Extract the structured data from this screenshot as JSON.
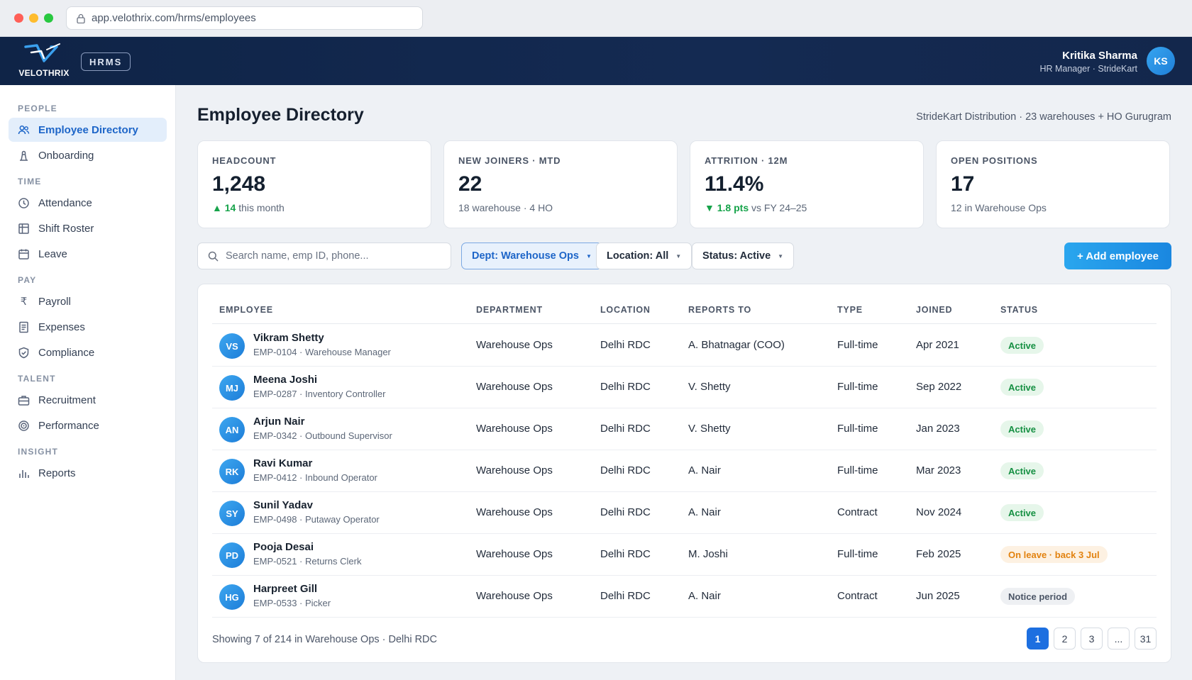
{
  "browser": {
    "url": "app.velothrix.com/hrms/employees"
  },
  "header": {
    "logo_text": "VELOTHRIX",
    "product_badge": "HRMS",
    "user_name": "Kritika Sharma",
    "user_role": "HR Manager · StrideKart",
    "user_initials": "KS"
  },
  "sidebar": {
    "sections": {
      "people": "PEOPLE",
      "time": "TIME",
      "pay": "PAY",
      "talent": "TALENT",
      "insight": "INSIGHT"
    },
    "items": {
      "employee_directory": "Employee Directory",
      "onboarding": "Onboarding",
      "attendance": "Attendance",
      "shift_roster": "Shift Roster",
      "leave": "Leave",
      "payroll": "Payroll",
      "expenses": "Expenses",
      "compliance": "Compliance",
      "recruitment": "Recruitment",
      "performance": "Performance",
      "reports": "Reports"
    },
    "active_item": "employee_directory"
  },
  "page": {
    "title": "Employee Directory",
    "org_info": "StrideKart Distribution · 23 warehouses + HO Gurugram"
  },
  "kpis": [
    {
      "label": "HEADCOUNT",
      "value": "1,248",
      "delta": "14",
      "delta_dir": "up",
      "sub": "this month"
    },
    {
      "label": "NEW JOINERS · MTD",
      "value": "22",
      "sub": "18 warehouse · 4 HO"
    },
    {
      "label": "ATTRITION · 12M",
      "value": "11.4%",
      "delta": "1.8 pts",
      "delta_dir": "down",
      "sub": "vs FY 24–25"
    },
    {
      "label": "OPEN POSITIONS",
      "value": "17",
      "sub": "12 in Warehouse Ops"
    }
  ],
  "toolbar": {
    "search_placeholder": "Search name, emp ID, phone...",
    "filter_dept": "Dept: Warehouse Ops",
    "filter_location": "Location: All",
    "filter_status": "Status: Active",
    "add_button": "+ Add employee"
  },
  "table": {
    "columns": [
      "EMPLOYEE",
      "DEPARTMENT",
      "LOCATION",
      "REPORTS TO",
      "TYPE",
      "JOINED",
      "STATUS"
    ],
    "rows": [
      {
        "initials": "VS",
        "name": "Vikram Shetty",
        "meta": "EMP-0104 · Warehouse Manager",
        "department": "Warehouse Ops",
        "location": "Delhi RDC",
        "reports_to": "A. Bhatnagar (COO)",
        "type": "Full-time",
        "joined": "Apr 2021",
        "status": "Active",
        "status_tone": "green"
      },
      {
        "initials": "MJ",
        "name": "Meena Joshi",
        "meta": "EMP-0287 · Inventory Controller",
        "department": "Warehouse Ops",
        "location": "Delhi RDC",
        "reports_to": "V. Shetty",
        "type": "Full-time",
        "joined": "Sep 2022",
        "status": "Active",
        "status_tone": "green"
      },
      {
        "initials": "AN",
        "name": "Arjun Nair",
        "meta": "EMP-0342 · Outbound Supervisor",
        "department": "Warehouse Ops",
        "location": "Delhi RDC",
        "reports_to": "V. Shetty",
        "type": "Full-time",
        "joined": "Jan 2023",
        "status": "Active",
        "status_tone": "green"
      },
      {
        "initials": "RK",
        "name": "Ravi Kumar",
        "meta": "EMP-0412 · Inbound Operator",
        "department": "Warehouse Ops",
        "location": "Delhi RDC",
        "reports_to": "A. Nair",
        "type": "Full-time",
        "joined": "Mar 2023",
        "status": "Active",
        "status_tone": "green"
      },
      {
        "initials": "SY",
        "name": "Sunil Yadav",
        "meta": "EMP-0498 · Putaway Operator",
        "department": "Warehouse Ops",
        "location": "Delhi RDC",
        "reports_to": "A. Nair",
        "type": "Contract",
        "joined": "Nov 2024",
        "status": "Active",
        "status_tone": "green"
      },
      {
        "initials": "PD",
        "name": "Pooja Desai",
        "meta": "EMP-0521 · Returns Clerk",
        "department": "Warehouse Ops",
        "location": "Delhi RDC",
        "reports_to": "M. Joshi",
        "type": "Full-time",
        "joined": "Feb 2025",
        "status": "On leave · back 3 Jul",
        "status_tone": "orange"
      },
      {
        "initials": "HG",
        "name": "Harpreet Gill",
        "meta": "EMP-0533 · Picker",
        "department": "Warehouse Ops",
        "location": "Delhi RDC",
        "reports_to": "A. Nair",
        "type": "Contract",
        "joined": "Jun 2025",
        "status": "Notice period",
        "status_tone": "gray"
      }
    ],
    "footer_text": "Showing 7 of 214 in Warehouse Ops · Delhi RDC",
    "pages": [
      "1",
      "2",
      "3",
      "...",
      "31"
    ],
    "current_page": "1"
  },
  "colors": {
    "header_bg": "#0f2447",
    "accent": "#1d6fe0",
    "status_green": "#169043",
    "status_orange": "#e2820f"
  }
}
